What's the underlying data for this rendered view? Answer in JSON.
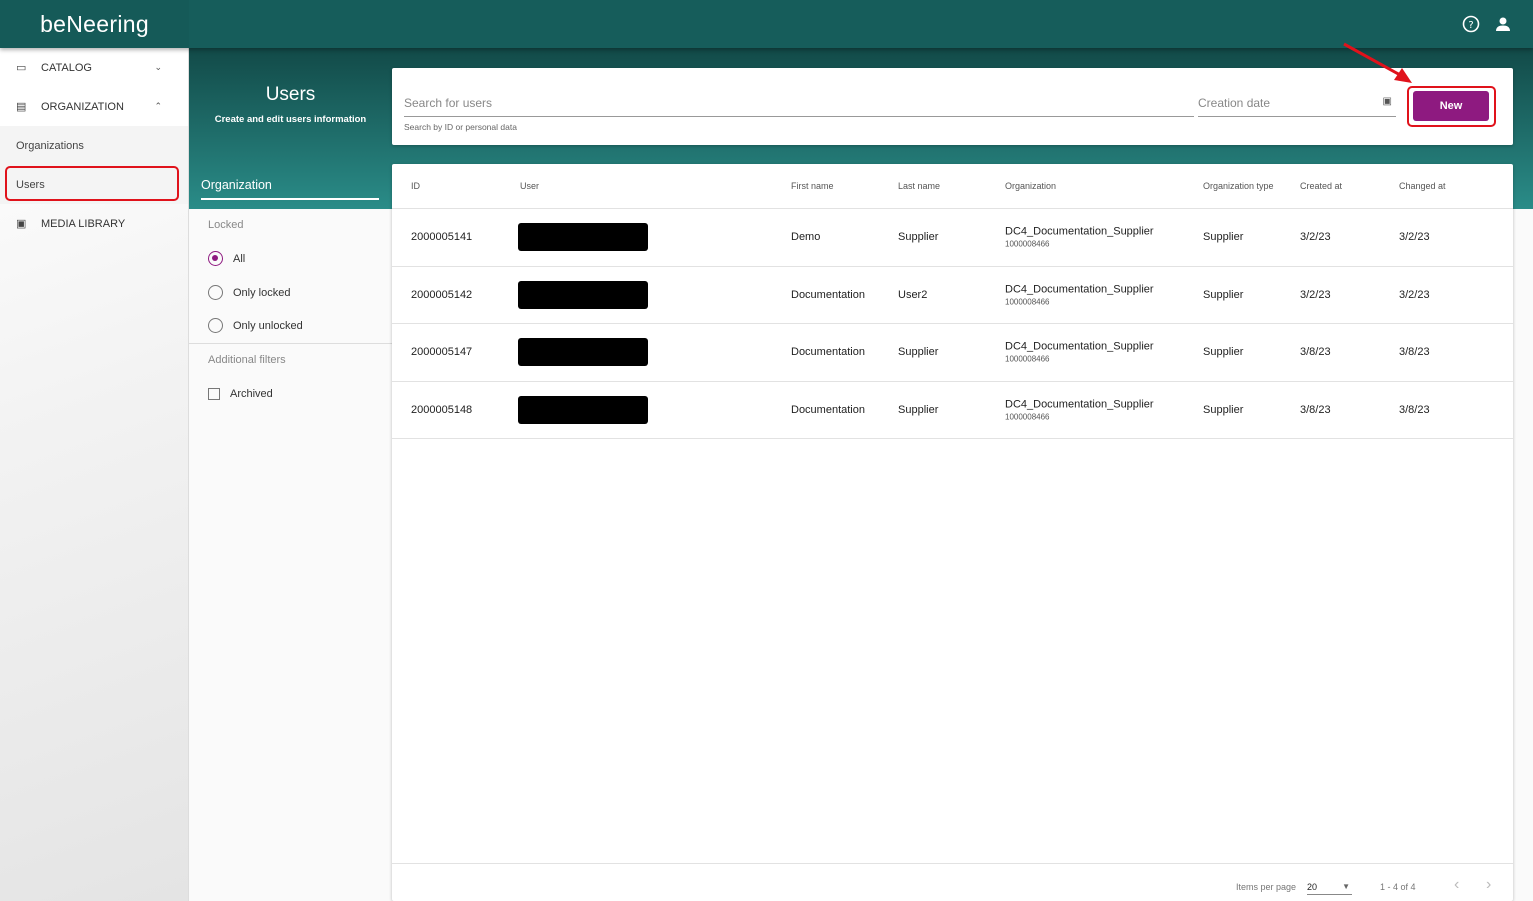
{
  "app": {
    "logo": "beNeering"
  },
  "header": {
    "help_icon": "help-circle-icon",
    "account_icon": "account-icon"
  },
  "sidebar": {
    "items": [
      {
        "label": "CATALOG",
        "icon": "folder-icon",
        "chevron": "⌄"
      },
      {
        "label": "ORGANIZATION",
        "icon": "building-icon",
        "chevron": "⌃"
      },
      {
        "label": "Organizations"
      },
      {
        "label": "Users"
      },
      {
        "label": "MEDIA LIBRARY",
        "icon": "media-icon"
      }
    ]
  },
  "page": {
    "title": "Users",
    "subtitle": "Create and edit users information"
  },
  "filters": {
    "tab": "Organization",
    "locked_label": "Locked",
    "options": [
      "All",
      "Only locked",
      "Only unlocked"
    ],
    "selected": "All",
    "additional_label": "Additional filters",
    "archived_label": "Archived",
    "archived_checked": false
  },
  "search": {
    "placeholder": "Search for users",
    "hint": "Search by ID or personal data",
    "date_placeholder": "Creation date",
    "new_label": "New"
  },
  "table": {
    "columns": [
      "ID",
      "User",
      "First name",
      "Last name",
      "Organization",
      "Organization type",
      "Created at",
      "Changed at"
    ],
    "rows": [
      {
        "id": "2000005141",
        "first": "Demo",
        "last": "Supplier",
        "org": "DC4_Documentation_Supplier",
        "org_id": "1000008466",
        "type": "Supplier",
        "created": "3/2/23",
        "changed": "3/2/23"
      },
      {
        "id": "2000005142",
        "first": "Documentation",
        "last": "User2",
        "org": "DC4_Documentation_Supplier",
        "org_id": "1000008466",
        "type": "Supplier",
        "created": "3/2/23",
        "changed": "3/2/23"
      },
      {
        "id": "2000005147",
        "first": "Documentation",
        "last": "Supplier",
        "org": "DC4_Documentation_Supplier",
        "org_id": "1000008466",
        "type": "Supplier",
        "created": "3/8/23",
        "changed": "3/8/23"
      },
      {
        "id": "2000005148",
        "first": "Documentation",
        "last": "Supplier",
        "org": "DC4_Documentation_Supplier",
        "org_id": "1000008466",
        "type": "Supplier",
        "created": "3/8/23",
        "changed": "3/8/23"
      }
    ]
  },
  "pager": {
    "items_label": "Items per page",
    "items_value": "20",
    "range": "1 - 4 of 4"
  },
  "colors": {
    "header": "#165d5b",
    "accent": "#8e1a80",
    "annotation": "#e0121b"
  }
}
